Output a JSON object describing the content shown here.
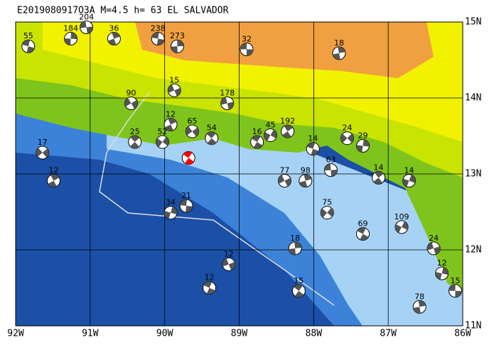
{
  "map": {
    "title": "E2019080917O3A M=4.5 h= 63 EL SALVADOR",
    "xlim": [
      -92,
      -86
    ],
    "ylim": [
      11,
      15
    ],
    "xticks": [
      {
        "value": -92,
        "label": "92W"
      },
      {
        "value": -91,
        "label": "91W"
      },
      {
        "value": -90,
        "label": "90W"
      },
      {
        "value": -89,
        "label": "89W"
      },
      {
        "value": -88,
        "label": "88W"
      },
      {
        "value": -87,
        "label": "87W"
      },
      {
        "value": -86,
        "label": "86W"
      }
    ],
    "yticks": [
      {
        "value": 11,
        "label": "11N"
      },
      {
        "value": 12,
        "label": "12N"
      },
      {
        "value": 13,
        "label": "13N"
      },
      {
        "value": 14,
        "label": "14N"
      },
      {
        "value": 15,
        "label": "15N"
      }
    ],
    "main_event": {
      "lon": -89.68,
      "lat": 13.21,
      "color": "#ff0000"
    },
    "events": [
      {
        "lon": -88.9,
        "lat": 14.64,
        "depth": 32
      },
      {
        "lon": -87.66,
        "lat": 14.59,
        "depth": 18
      },
      {
        "lon": -89.87,
        "lat": 14.1,
        "depth": 15
      },
      {
        "lon": -88.35,
        "lat": 13.56,
        "depth": 192
      },
      {
        "lon": -87.55,
        "lat": 13.47,
        "depth": 24
      },
      {
        "lon": -88.76,
        "lat": 13.42,
        "depth": 16
      },
      {
        "lon": -86.72,
        "lat": 12.91,
        "depth": 14
      },
      {
        "lon": -90.09,
        "lat": 14.78,
        "depth": 238
      },
      {
        "lon": -89.83,
        "lat": 14.68,
        "depth": 273
      },
      {
        "lon": -89.16,
        "lat": 13.93,
        "depth": 178
      },
      {
        "lon": -89.92,
        "lat": 13.65,
        "depth": 12
      },
      {
        "lon": -89.63,
        "lat": 13.56,
        "depth": 65
      },
      {
        "lon": -89.37,
        "lat": 13.47,
        "depth": 54
      },
      {
        "lon": -88.58,
        "lat": 13.51,
        "depth": 45
      },
      {
        "lon": -88.01,
        "lat": 13.33,
        "depth": 14
      },
      {
        "lon": -87.34,
        "lat": 13.37,
        "depth": 29
      },
      {
        "lon": -87.77,
        "lat": 13.05,
        "depth": 63
      },
      {
        "lon": -88.11,
        "lat": 12.91,
        "depth": 98
      },
      {
        "lon": -88.39,
        "lat": 12.91,
        "depth": 77
      },
      {
        "lon": -87.13,
        "lat": 12.95,
        "depth": 14
      },
      {
        "lon": -87.82,
        "lat": 12.49,
        "depth": 75
      },
      {
        "lon": -87.34,
        "lat": 12.21,
        "depth": 69
      },
      {
        "lon": -89.92,
        "lat": 12.49,
        "depth": 34
      },
      {
        "lon": -89.71,
        "lat": 12.58,
        "depth": 21
      },
      {
        "lon": -88.25,
        "lat": 12.02,
        "depth": 18
      },
      {
        "lon": -86.39,
        "lat": 12.02,
        "depth": 24
      },
      {
        "lon": -91.49,
        "lat": 12.91,
        "depth": 12
      },
      {
        "lon": -91.64,
        "lat": 13.28,
        "depth": 17
      },
      {
        "lon": -88.2,
        "lat": 11.46,
        "depth": 15
      },
      {
        "lon": -86.82,
        "lat": 12.3,
        "depth": 109
      },
      {
        "lon": -91.83,
        "lat": 14.68,
        "depth": 55
      },
      {
        "lon": -91.26,
        "lat": 14.78,
        "depth": 184
      },
      {
        "lon": -91.05,
        "lat": 14.93,
        "depth": 204
      },
      {
        "lon": -90.68,
        "lat": 14.78,
        "depth": 36
      },
      {
        "lon": -90.45,
        "lat": 13.93,
        "depth": 90
      },
      {
        "lon": -90.4,
        "lat": 13.42,
        "depth": 25
      },
      {
        "lon": -90.03,
        "lat": 13.42,
        "depth": 52
      },
      {
        "lon": -89.4,
        "lat": 11.5,
        "depth": 12
      },
      {
        "lon": -86.28,
        "lat": 11.69,
        "depth": 12
      },
      {
        "lon": -86.1,
        "lat": 11.46,
        "depth": 15
      },
      {
        "lon": -86.58,
        "lat": 11.25,
        "depth": 78
      },
      {
        "lon": -89.14,
        "lat": 11.81,
        "depth": 12
      }
    ]
  }
}
